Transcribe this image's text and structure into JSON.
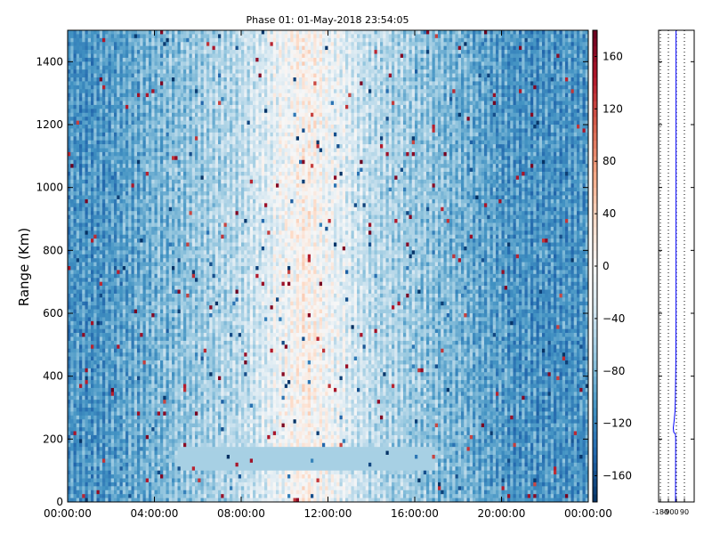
{
  "chart_data": [
    {
      "type": "heatmap",
      "title": "Phase 01: 01-May-2018 23:54:05",
      "xlabel": "",
      "ylabel": "Range (Km)",
      "x_tick_labels": [
        "00:00:00",
        "04:00:00",
        "08:00:00",
        "12:00:00",
        "16:00:00",
        "20:00:00",
        "00:00:00"
      ],
      "x_ticks_hours": [
        0,
        4,
        8,
        12,
        16,
        20,
        24
      ],
      "xlim_hours": [
        0,
        24
      ],
      "y_ticks": [
        0,
        200,
        400,
        600,
        800,
        1000,
        1200,
        1400
      ],
      "ylim": [
        0,
        1500
      ],
      "colormap": "RdBu_r",
      "colorbar": {
        "ticks": [
          160,
          120,
          80,
          40,
          0,
          -40,
          -80,
          -120,
          -160
        ],
        "range": [
          -180,
          180
        ],
        "colors": [
          "#053061",
          "#2166ac",
          "#4393c3",
          "#92c5de",
          "#d1e5f0",
          "#f7f7f7",
          "#fddbc7",
          "#f4a582",
          "#d6604d",
          "#b2182b",
          "#67001f"
        ]
      },
      "grid": false
    },
    {
      "type": "line",
      "title": "",
      "x_tick_labels": [
        "-180",
        "-90",
        "0",
        "90"
      ],
      "x_ticks": [
        -180,
        -90,
        0,
        90
      ],
      "xlim": [
        -200,
        200
      ],
      "ylim": [
        0,
        1500
      ],
      "y_ticks": [
        0,
        200,
        400,
        600,
        800,
        1000,
        1200,
        1400
      ],
      "grid_x": true,
      "line_color": "#0000ff",
      "series": [
        {
          "y": [
            0,
            100,
            200,
            215,
            222,
            235,
            260,
            290,
            320,
            360,
            400,
            450,
            500,
            600,
            700,
            800,
            900,
            1000,
            1100,
            1200,
            1300,
            1400,
            1500
          ],
          "x": [
            -10,
            -9,
            -8,
            -10,
            -30,
            -35,
            -25,
            -15,
            -12,
            -10,
            -8,
            -6,
            -5,
            -4,
            -4,
            -4,
            -4,
            -4,
            -4,
            -4,
            -4,
            -4,
            -4
          ]
        }
      ]
    }
  ]
}
